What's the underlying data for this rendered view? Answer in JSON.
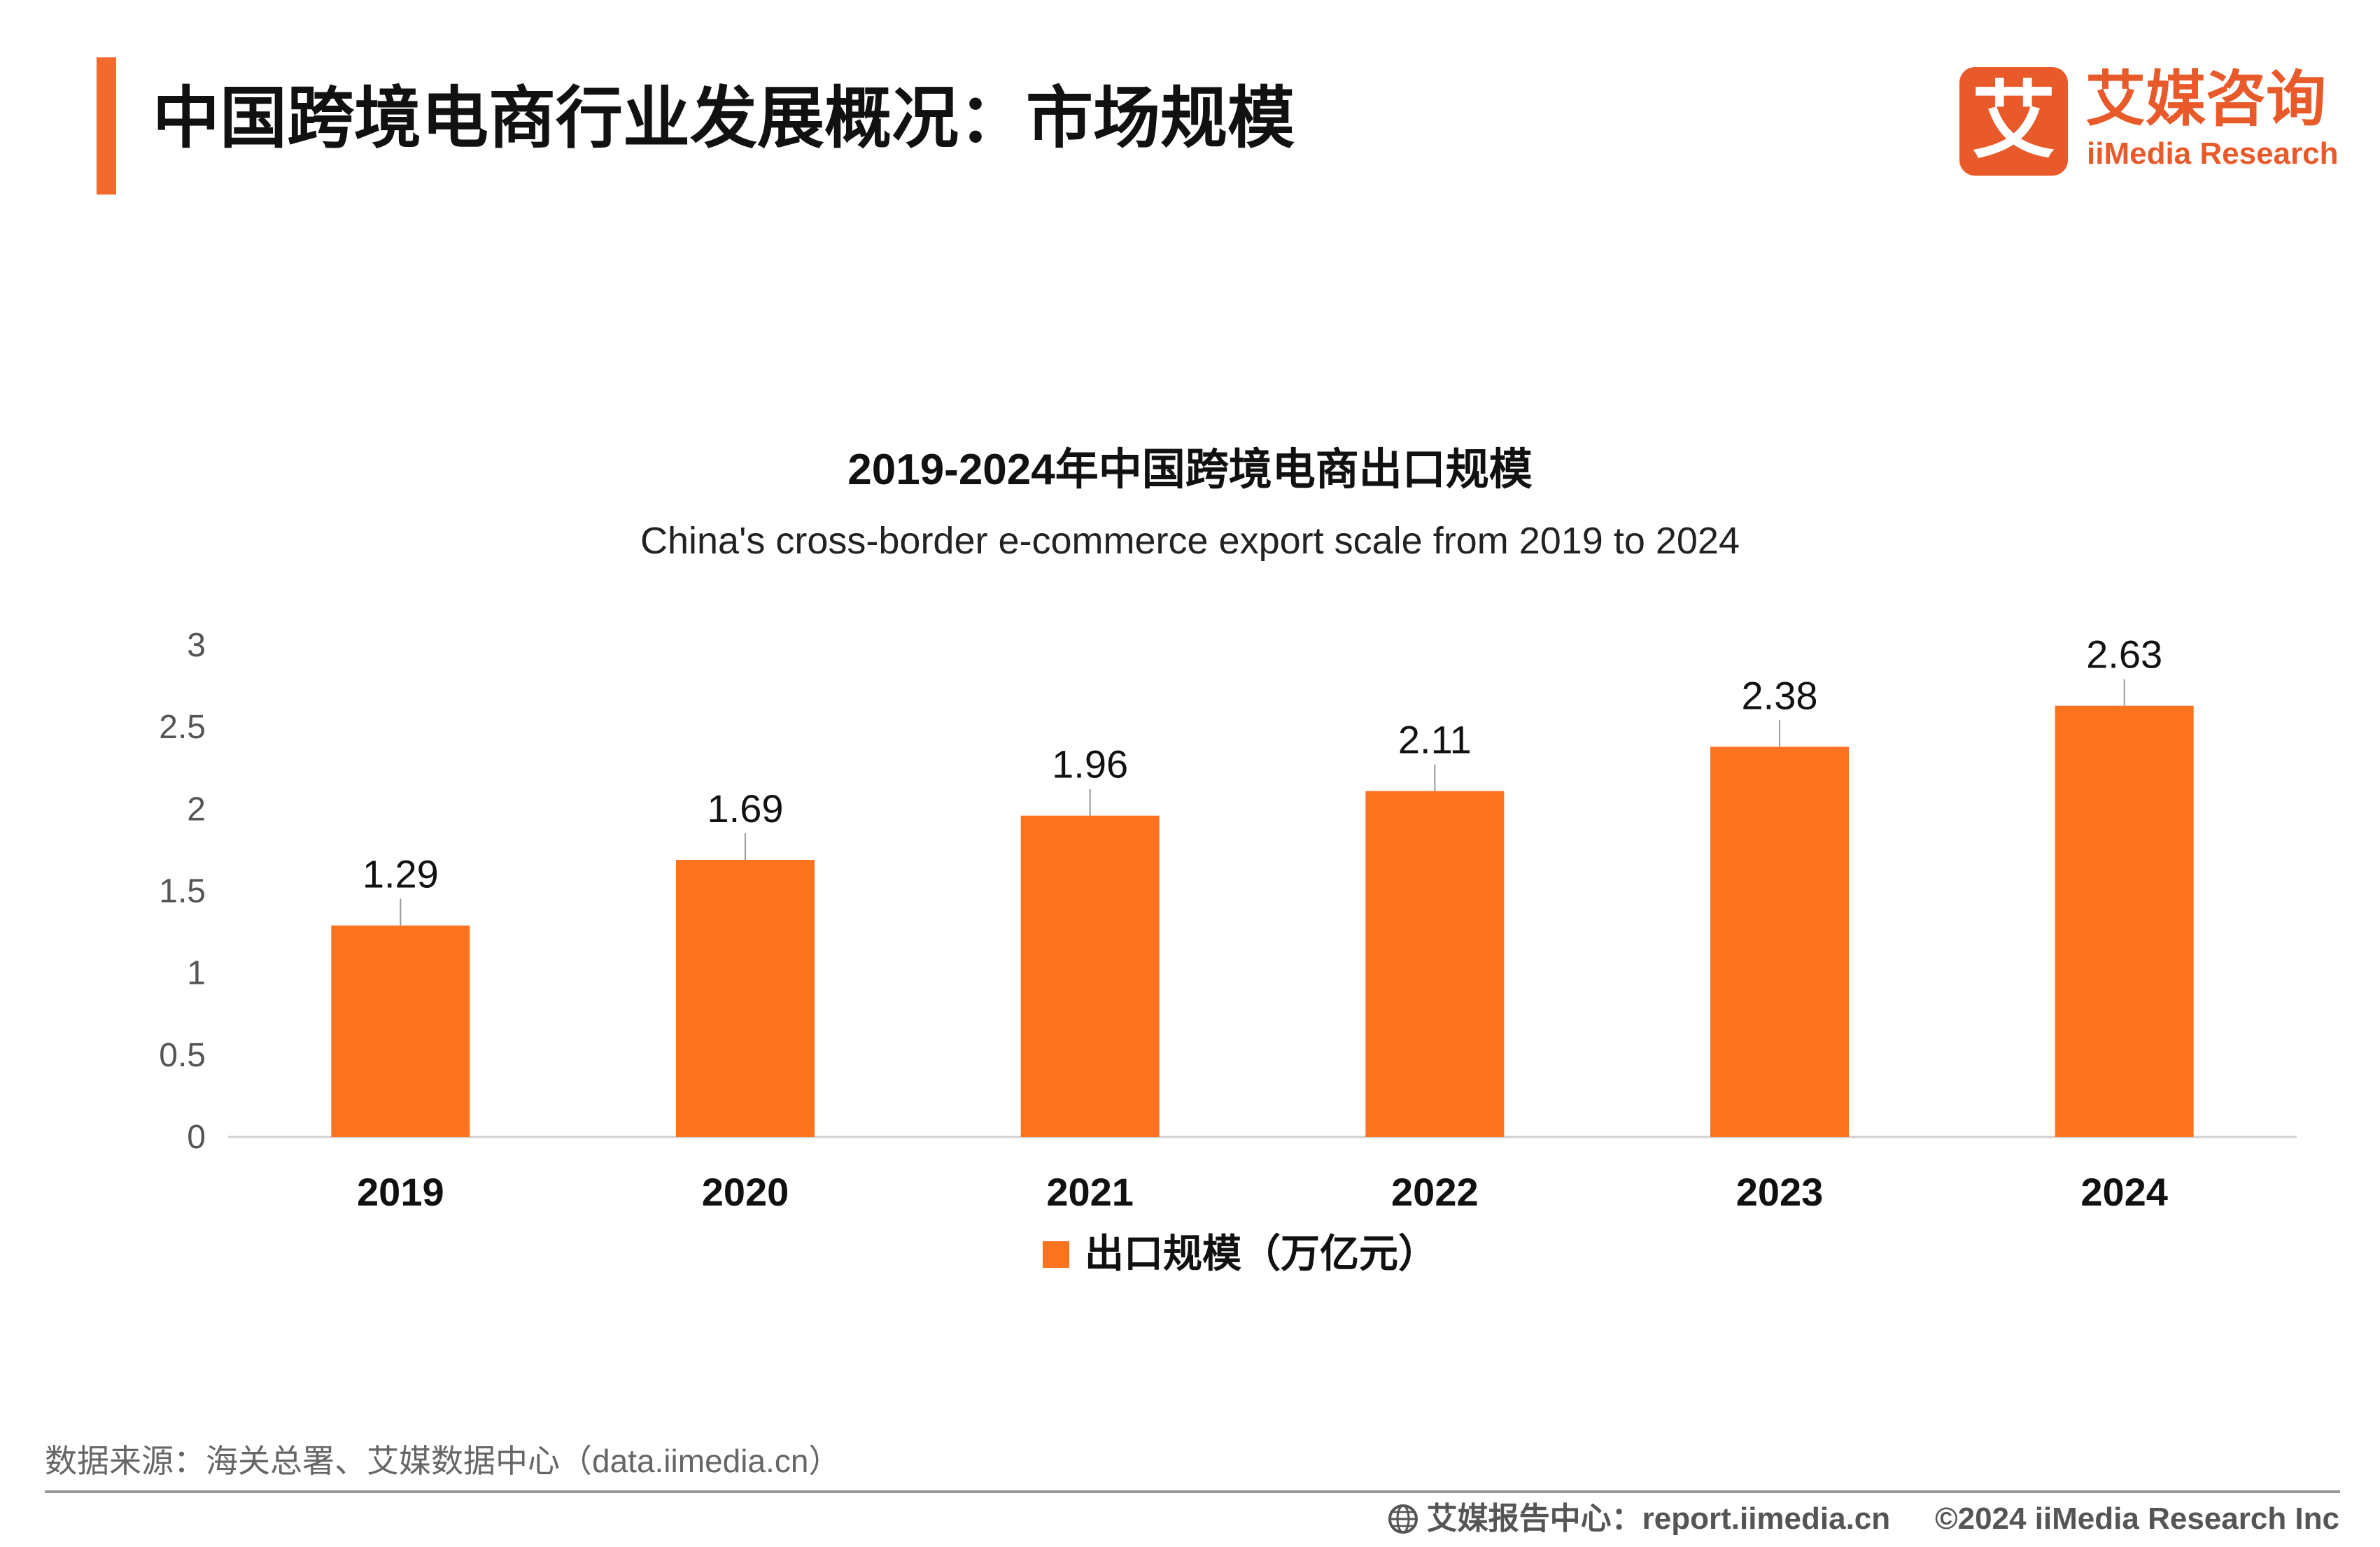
{
  "header": {
    "title": "中国跨境电商行业发展概况：市场规模",
    "accent_color": "#f4692c"
  },
  "logo": {
    "mark_char": "艾",
    "cn": "艾媒咨询",
    "en": "iiMedia Research",
    "color": "#e85a2a"
  },
  "chart_data": {
    "type": "bar",
    "title": "2019-2024年中国跨境电商出口规模",
    "subtitle": "China's cross-border e-commerce export scale from 2019 to 2024",
    "categories": [
      "2019",
      "2020",
      "2021",
      "2022",
      "2023",
      "2024"
    ],
    "series": [
      {
        "name": "出口规模（万亿元）",
        "values": [
          1.29,
          1.69,
          1.96,
          2.11,
          2.38,
          2.63
        ],
        "color": "#fb731f"
      }
    ],
    "y_ticks": [
      "0",
      "0.5",
      "1",
      "1.5",
      "2",
      "2.5",
      "3"
    ],
    "ylim": [
      0,
      3
    ],
    "xlabel": "",
    "ylabel": "",
    "grid": false,
    "legend_position": "bottom"
  },
  "source": "数据来源：海关总署、艾媒数据中心（data.iimedia.cn）",
  "footer": {
    "report_center": "艾媒报告中心：report.iimedia.cn",
    "copyright": "©2024  iiMedia Research  Inc"
  }
}
